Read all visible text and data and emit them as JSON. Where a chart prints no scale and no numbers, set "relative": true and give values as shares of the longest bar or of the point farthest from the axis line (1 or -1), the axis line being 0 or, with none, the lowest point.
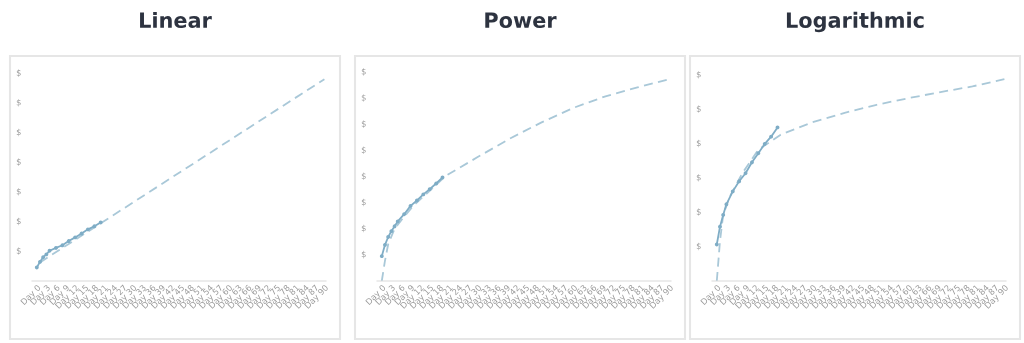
{
  "chart_data": [
    {
      "type": "line",
      "title": "Linear",
      "relative": true,
      "categories": [
        "Day 0",
        null,
        null,
        "Day 3",
        null,
        null,
        "Day 6",
        null,
        null,
        "Day 9",
        null,
        null,
        "Day 12",
        null,
        null,
        "Day 15",
        null,
        null,
        "Day 18",
        null,
        null,
        "Day 21",
        null,
        null,
        "Day 24",
        null,
        null,
        "Day 27",
        null,
        null,
        "Day 30",
        null,
        null,
        "Day 33",
        null,
        null,
        "Day 36",
        null,
        null,
        "Day 39",
        null,
        null,
        "Day 42",
        null,
        null,
        "Day 45",
        null,
        null,
        "Day 48",
        null,
        null,
        "Day 51",
        null,
        null,
        "Day 54",
        null,
        null,
        "Day 57",
        null,
        null,
        "Day 60",
        null,
        null,
        "Day 63",
        null,
        null,
        "Day 66",
        null,
        null,
        "Day 69",
        null,
        null,
        "Day 72",
        null,
        null,
        "Day 75",
        null,
        null,
        "Day 78",
        null,
        null,
        "Day 81",
        null,
        null,
        "Day 84",
        null,
        null,
        "Day 87",
        null,
        null,
        "Day 90"
      ],
      "annotations": [
        "$",
        "$",
        "$",
        "$",
        "$",
        "$",
        "$"
      ],
      "series": [
        {
          "color": "#a9c8d8",
          "line_style": "dashed",
          "marker": "none",
          "values": [
            null,
            0.092,
            null,
            null,
            null,
            null,
            null,
            null,
            null,
            null,
            null,
            null,
            null,
            null,
            null,
            null,
            null,
            null,
            null,
            null,
            null,
            null,
            null,
            null,
            null,
            null,
            null,
            null,
            null,
            null,
            null,
            null,
            null,
            null,
            null,
            null,
            null,
            null,
            null,
            null,
            null,
            null,
            null,
            null,
            null,
            null,
            null,
            null,
            null,
            null,
            null,
            null,
            null,
            null,
            null,
            null,
            null,
            null,
            null,
            null,
            null,
            null,
            null,
            null,
            null,
            null,
            null,
            null,
            null,
            null,
            null,
            null,
            null,
            null,
            null,
            null,
            null,
            null,
            null,
            null,
            null,
            null,
            null,
            null,
            null,
            null,
            null,
            null,
            null,
            null,
            1.0
          ]
        },
        {
          "color": "#7fadc6",
          "line_style": "solid",
          "marker": "circle",
          "values": [
            0.067,
            0.095,
            0.118,
            0.132,
            0.15,
            null,
            0.164,
            null,
            0.177,
            null,
            0.198,
            null,
            0.216,
            null,
            0.235,
            null,
            0.256,
            null,
            0.271,
            null,
            0.29,
            null,
            null,
            null,
            null,
            null,
            null,
            null,
            null,
            null,
            null,
            null,
            null,
            null,
            null,
            null,
            null,
            null,
            null,
            null,
            null,
            null,
            null,
            null,
            null,
            null,
            null,
            null,
            null,
            null,
            null,
            null,
            null,
            null,
            null,
            null,
            null,
            null,
            null,
            null,
            null,
            null,
            null,
            null,
            null,
            null,
            null,
            null,
            null,
            null,
            null,
            null,
            null,
            null,
            null,
            null,
            null,
            null,
            null,
            null,
            null,
            null,
            null,
            null,
            null,
            null,
            null,
            null,
            null,
            null,
            null
          ]
        }
      ]
    },
    {
      "type": "line",
      "title": "Power",
      "relative": true,
      "categories": [
        "Day 0",
        null,
        null,
        "Day 3",
        null,
        null,
        "Day 6",
        null,
        null,
        "Day 9",
        null,
        null,
        "Day 12",
        null,
        null,
        "Day 15",
        null,
        null,
        "Day 18",
        null,
        null,
        "Day 21",
        null,
        null,
        "Day 24",
        null,
        null,
        "Day 27",
        null,
        null,
        "Day 30",
        null,
        null,
        "Day 33",
        null,
        null,
        "Day 36",
        null,
        null,
        "Day 39",
        null,
        null,
        "Day 42",
        null,
        null,
        "Day 45",
        null,
        null,
        "Day 48",
        null,
        null,
        "Day 51",
        null,
        null,
        "Day 54",
        null,
        null,
        "Day 57",
        null,
        null,
        "Day 60",
        null,
        null,
        "Day 63",
        null,
        null,
        "Day 66",
        null,
        null,
        "Day 69",
        null,
        null,
        "Day 72",
        null,
        null,
        "Day 75",
        null,
        null,
        "Day 78",
        null,
        null,
        "Day 81",
        null,
        null,
        "Day 84",
        null,
        null,
        "Day 87",
        null,
        null,
        "Day 90"
      ],
      "annotations": [
        "$",
        "$",
        "$",
        "$",
        "$",
        "$",
        "$",
        "$"
      ],
      "series": [
        {
          "color": "#a9c8d8",
          "line_style": "dashed",
          "marker": "none",
          "values": [
            0,
            0.101,
            0.182,
            null,
            0.259,
            null,
            null,
            0.319,
            null,
            null,
            0.375,
            null,
            null,
            null,
            null,
            0.447,
            null,
            null,
            null,
            null,
            0.521,
            null,
            null,
            null,
            null,
            null,
            null,
            null,
            null,
            null,
            0.614,
            null,
            null,
            null,
            null,
            null,
            null,
            null,
            null,
            null,
            0.705,
            null,
            null,
            null,
            null,
            null,
            null,
            null,
            null,
            null,
            0.786,
            null,
            null,
            null,
            null,
            null,
            null,
            null,
            null,
            null,
            0.858,
            null,
            null,
            null,
            null,
            null,
            null,
            null,
            null,
            null,
            0.915,
            null,
            null,
            null,
            null,
            null,
            null,
            null,
            null,
            null,
            0.959,
            null,
            null,
            null,
            null,
            null,
            null,
            null,
            null,
            null,
            1.0
          ]
        },
        {
          "color": "#7fadc6",
          "line_style": "solid",
          "marker": "circle",
          "values": [
            0.123,
            0.179,
            0.218,
            0.247,
            0.271,
            0.295,
            null,
            0.331,
            null,
            0.372,
            null,
            0.399,
            null,
            0.429,
            null,
            0.455,
            null,
            0.483,
            null,
            0.513,
            null,
            null,
            null,
            null,
            null,
            null,
            null,
            null,
            null,
            null,
            null,
            null,
            null,
            null,
            null,
            null,
            null,
            null,
            null,
            null,
            null,
            null,
            null,
            null,
            null,
            null,
            null,
            null,
            null,
            null,
            null,
            null,
            null,
            null,
            null,
            null,
            null,
            null,
            null,
            null,
            null,
            null,
            null,
            null,
            null,
            null,
            null,
            null,
            null,
            null,
            null,
            null,
            null,
            null,
            null,
            null,
            null,
            null,
            null,
            null,
            null,
            null,
            null,
            null,
            null,
            null,
            null,
            null,
            null,
            null,
            null
          ]
        }
      ]
    },
    {
      "type": "line",
      "title": "Logarithmic",
      "relative": true,
      "categories": [
        "Day 0",
        null,
        null,
        "Day 3",
        null,
        null,
        "Day 6",
        null,
        null,
        "Day 9",
        null,
        null,
        "Day 12",
        null,
        null,
        "Day 15",
        null,
        null,
        "Day 18",
        null,
        null,
        "Day 21",
        null,
        null,
        "Day 24",
        null,
        null,
        "Day 27",
        null,
        null,
        "Day 30",
        null,
        null,
        "Day 33",
        null,
        null,
        "Day 36",
        null,
        null,
        "Day 39",
        null,
        null,
        "Day 42",
        null,
        null,
        "Day 45",
        null,
        null,
        "Day 48",
        null,
        null,
        "Day 51",
        null,
        null,
        "Day 54",
        null,
        null,
        "Day 57",
        null,
        null,
        "Day 60",
        null,
        null,
        "Day 63",
        null,
        null,
        "Day 66",
        null,
        null,
        "Day 69",
        null,
        null,
        "Day 72",
        null,
        null,
        "Day 75",
        null,
        null,
        "Day 78",
        null,
        null,
        "Day 81",
        null,
        null,
        "Day 84",
        null,
        null,
        "Day 87",
        null,
        null,
        "Day 90"
      ],
      "annotations": [
        "$",
        "$",
        "$",
        "$",
        "$",
        "$"
      ],
      "series": [
        {
          "color": "#a9c8d8",
          "line_style": "dashed",
          "marker": "none",
          "values": [
            0,
            0.199,
            0.327,
            null,
            0.416,
            null,
            null,
            null,
            0.534,
            null,
            null,
            null,
            null,
            0.651,
            null,
            null,
            null,
            null,
            null,
            null,
            0.725,
            null,
            null,
            null,
            null,
            null,
            null,
            null,
            null,
            null,
            0.787,
            null,
            null,
            null,
            null,
            null,
            null,
            null,
            null,
            null,
            0.833,
            null,
            null,
            null,
            null,
            null,
            null,
            null,
            null,
            null,
            0.873,
            null,
            null,
            null,
            null,
            null,
            null,
            null,
            null,
            null,
            0.906,
            null,
            null,
            null,
            null,
            null,
            null,
            null,
            null,
            null,
            0.936,
            null,
            null,
            null,
            null,
            null,
            null,
            null,
            null,
            null,
            0.964,
            null,
            null,
            null,
            null,
            null,
            null,
            null,
            null,
            null,
            1.0
          ]
        },
        {
          "color": "#7fadc6",
          "line_style": "solid",
          "marker": "circle",
          "values": [
            0.181,
            0.269,
            0.327,
            0.38,
            null,
            0.444,
            null,
            0.494,
            null,
            0.534,
            null,
            0.588,
            null,
            0.633,
            null,
            0.679,
            null,
            0.715,
            null,
            0.761,
            null,
            null,
            null,
            null,
            null,
            null,
            null,
            null,
            null,
            null,
            null,
            null,
            null,
            null,
            null,
            null,
            null,
            null,
            null,
            null,
            null,
            null,
            null,
            null,
            null,
            null,
            null,
            null,
            null,
            null,
            null,
            null,
            null,
            null,
            null,
            null,
            null,
            null,
            null,
            null,
            null,
            null,
            null,
            null,
            null,
            null,
            null,
            null,
            null,
            null,
            null,
            null,
            null,
            null,
            null,
            null,
            null,
            null,
            null,
            null,
            null,
            null,
            null,
            null,
            null,
            null,
            null,
            null,
            null,
            null,
            null
          ]
        }
      ]
    }
  ]
}
